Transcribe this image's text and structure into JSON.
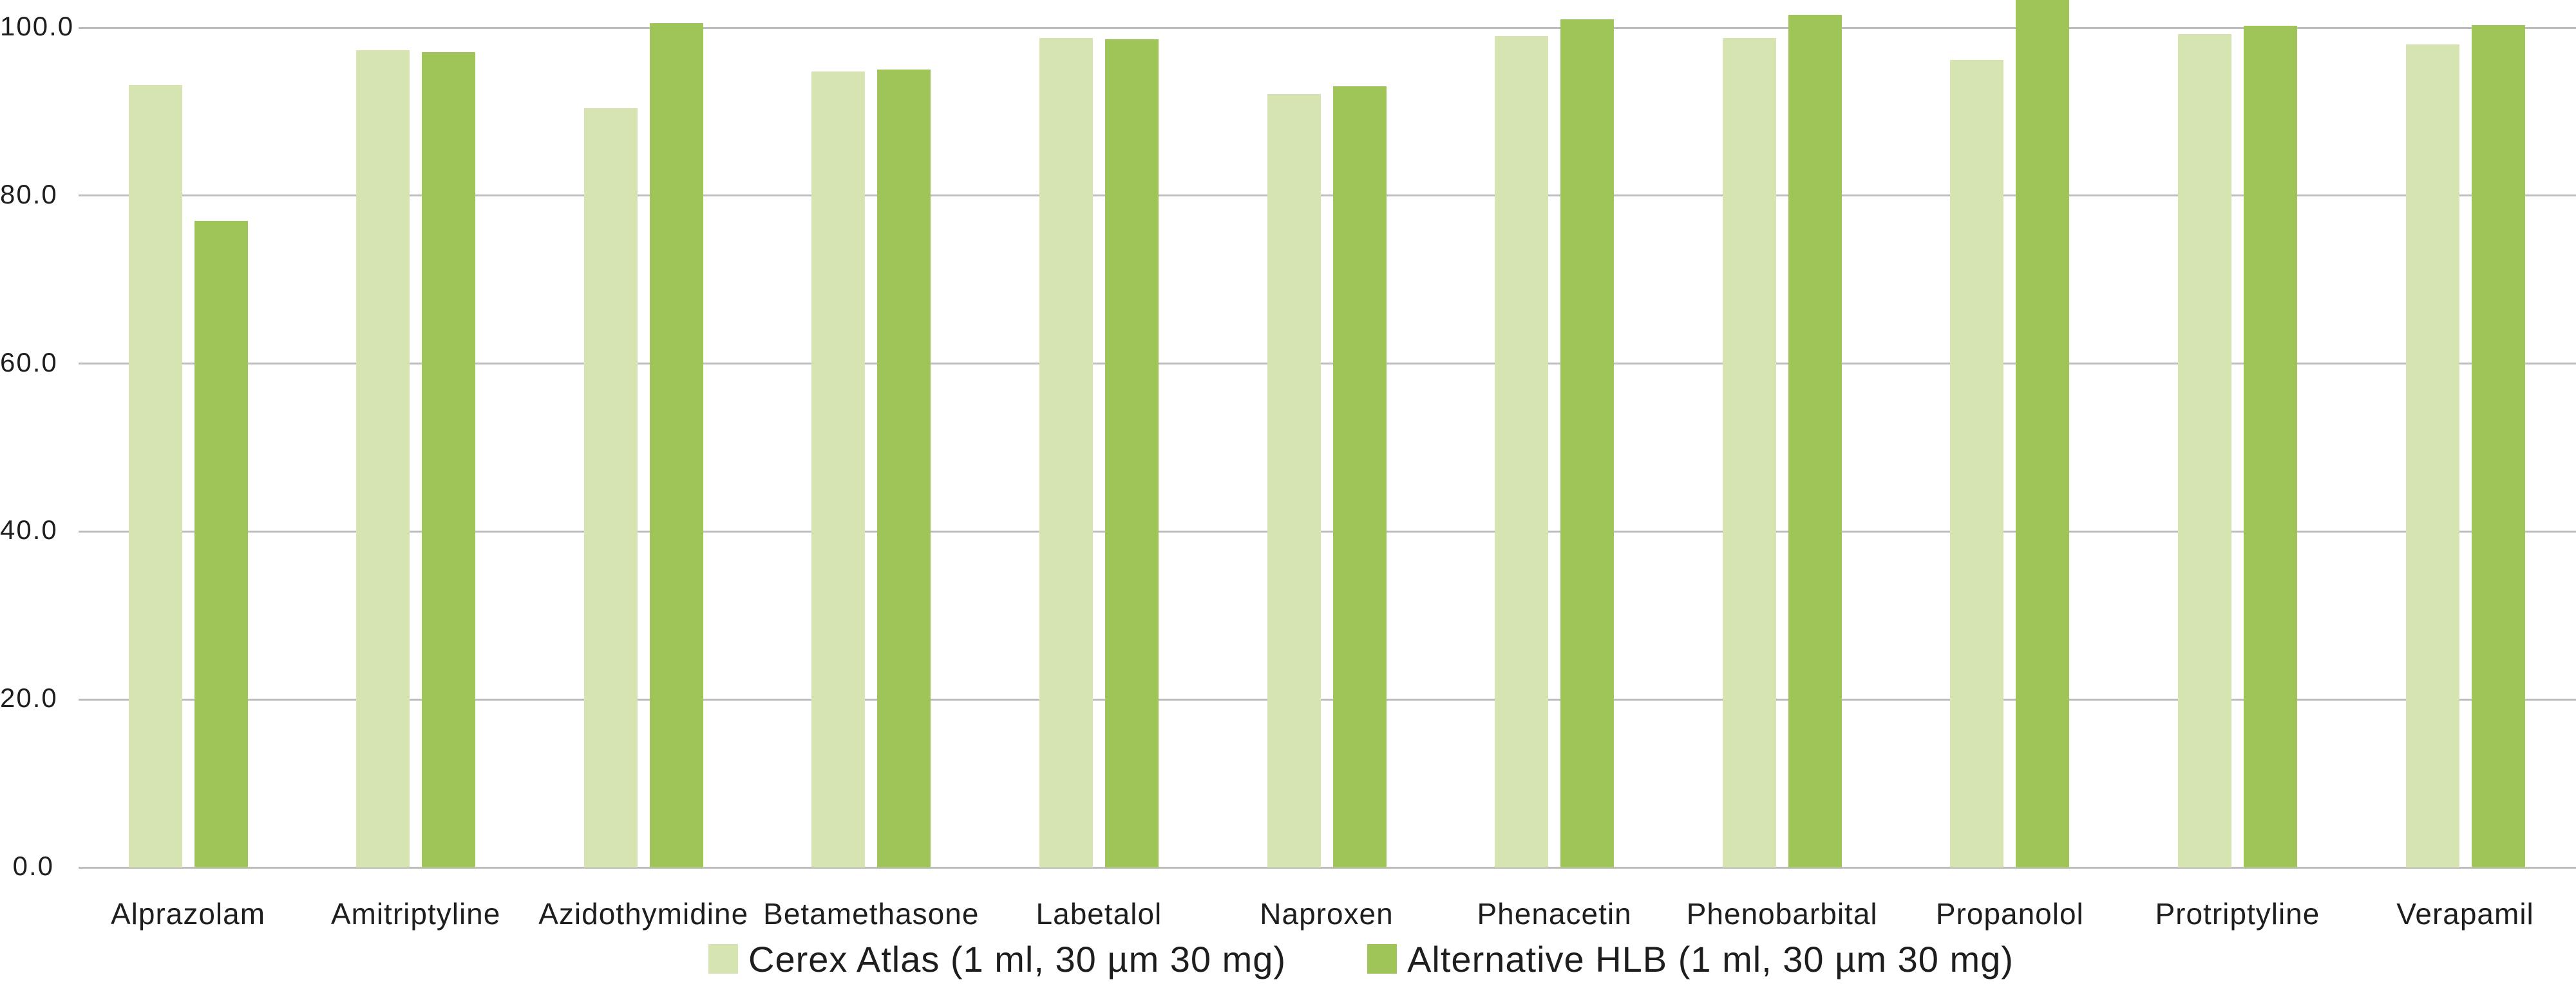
{
  "chart_data": {
    "type": "bar",
    "title": "",
    "xlabel": "",
    "ylabel": "",
    "categories": [
      "Alprazolam",
      "Amitriptyline",
      "Azidothymidine",
      "Betamethasone",
      "Labetalol",
      "Naproxen",
      "Phenacetin",
      "Phenobarbital",
      "Propanolol",
      "Protriptyline",
      "Verapamil"
    ],
    "series": [
      {
        "name": "Cerex Atlas (1 ml, 30 µm 30 mg)",
        "color": "#d5e4b1",
        "values": [
          93.2,
          97.3,
          90.4,
          94.8,
          98.8,
          92.1,
          99.0,
          98.8,
          96.2,
          99.2,
          98.0
        ]
      },
      {
        "name": "Alternative HLB (1 ml, 30 µm 30 mg)",
        "color": "#9fc558",
        "values": [
          77.0,
          97.1,
          100.5,
          95.0,
          98.6,
          93.0,
          101.0,
          101.5,
          103.5,
          100.2,
          100.3
        ]
      }
    ],
    "y_axis": {
      "tick_labels": [
        "100.0",
        "80.0",
        "60.0",
        "40.0",
        "20.0",
        "0.0"
      ],
      "tick_values": [
        100,
        80,
        60,
        40,
        20,
        0
      ],
      "min": 0,
      "max": 103.3
    },
    "grid": "horizontal",
    "legend_position": "bottom-center",
    "notes": "Second-series bar for Propanolol exceeds plot top and is clipped at the image edge.",
    "colors": {
      "gridline": "#bdbdbd",
      "text": "#1e1e1e",
      "background": "#ffffff"
    }
  }
}
